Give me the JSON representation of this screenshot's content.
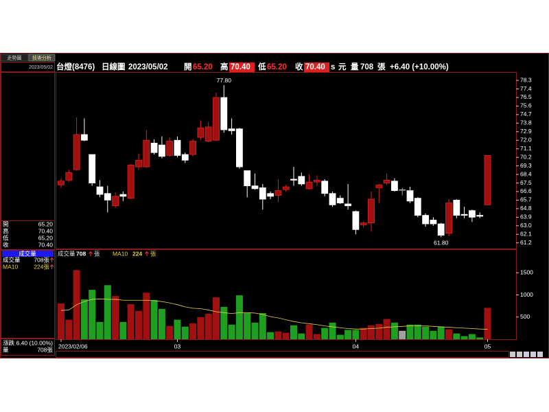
{
  "header": {
    "name": "台燈(8476)",
    "period": "日線圖",
    "date": "2023/05/02",
    "quotes": [
      {
        "label": "開",
        "value": "65.20"
      },
      {
        "label": "高",
        "value": "70.40"
      },
      {
        "label": "低",
        "value": "65.20"
      },
      {
        "label": "收",
        "value": "70.40"
      }
    ],
    "flag": "s",
    "currency": "元",
    "volume": {
      "label": "量",
      "value": "708",
      "unit": "張"
    },
    "change": "+6.40 (+10.00%)"
  },
  "side_panel": {
    "tabs": [
      "走勢圖",
      "技術分析"
    ],
    "date": "2023/05/02",
    "quotes": [
      {
        "label": "開",
        "value": "65.20"
      },
      {
        "label": "高",
        "value": "70.40"
      },
      {
        "label": "低",
        "value": "65.20"
      },
      {
        "label": "收",
        "value": "70.40"
      }
    ],
    "volume_title": "成交量",
    "volume_rows": [
      {
        "label": "成交量",
        "value": "708張"
      },
      {
        "label": "MA10",
        "value": "224張"
      }
    ],
    "footer": [
      {
        "label": "漲跌",
        "value": "6.40 (10.00%)"
      },
      {
        "label": "量",
        "value": "708張"
      }
    ]
  },
  "chart_data": [
    {
      "type": "candlestick",
      "open": [
        67.3,
        67.8,
        68.9,
        72.6,
        70.5,
        67.1,
        66.4,
        65.1,
        66.3,
        65.9,
        69.2,
        69.2,
        71.7,
        71.5,
        70.4,
        72.0,
        70.5,
        70.5,
        72.3,
        71.9,
        72.0,
        76.5,
        73.2,
        73.2,
        68.8,
        67.2,
        67.0,
        66.4,
        66.2,
        66.8,
        67.9,
        68.2,
        66.9,
        67.6,
        67.7,
        66.4,
        65.9,
        65.3,
        64.5,
        63.1,
        63.3,
        67.0,
        67.5,
        67.7,
        66.8,
        66.7,
        65.9,
        64.1,
        63.6,
        63.2,
        62.2,
        65.7,
        64.2,
        64.6,
        64.1,
        65.2
      ],
      "high": [
        68.0,
        68.9,
        74.4,
        74.3,
        70.5,
        67.8,
        67.2,
        66.5,
        66.6,
        69.5,
        70.6,
        73.1,
        72.1,
        72.4,
        72.3,
        72.4,
        70.7,
        72.1,
        74.1,
        73.9,
        77.0,
        77.8,
        74.3,
        73.3,
        68.8,
        68.5,
        67.4,
        66.6,
        67.9,
        67.3,
        69.2,
        68.6,
        68.4,
        68.3,
        67.9,
        66.6,
        66.2,
        67.4,
        64.6,
        63.5,
        66.6,
        67.4,
        68.5,
        68.0,
        67.0,
        67.1,
        66.0,
        64.3,
        63.9,
        63.3,
        65.8,
        65.8,
        65.0,
        64.7,
        64.4,
        70.4
      ],
      "low": [
        67.0,
        67.6,
        68.8,
        71.9,
        67.2,
        66.0,
        64.4,
        64.9,
        65.6,
        65.8,
        68.9,
        69.1,
        70.5,
        70.1,
        70.3,
        70.2,
        69.6,
        70.3,
        72.0,
        71.8,
        71.9,
        72.8,
        72.6,
        69.0,
        66.0,
        66.8,
        64.7,
        65.8,
        65.5,
        66.6,
        67.2,
        67.2,
        66.8,
        67.2,
        66.1,
        65.0,
        65.3,
        64.7,
        62.1,
        62.8,
        62.4,
        65.4,
        67.3,
        66.6,
        66.2,
        65.4,
        63.9,
        62.9,
        63.0,
        61.8,
        61.9,
        63.8,
        63.8,
        63.4,
        63.8,
        65.2
      ],
      "close": [
        67.7,
        68.6,
        72.6,
        72.0,
        67.5,
        66.3,
        65.7,
        66.1,
        66.1,
        69.4,
        69.9,
        72.0,
        70.7,
        70.3,
        71.9,
        70.4,
        69.9,
        71.9,
        73.3,
        73.4,
        76.5,
        73.1,
        73.0,
        69.2,
        67.2,
        66.9,
        65.8,
        66.1,
        66.7,
        67.1,
        67.8,
        67.4,
        67.6,
        67.8,
        66.4,
        65.2,
        65.4,
        65.1,
        62.6,
        63.3,
        65.8,
        67.3,
        67.8,
        66.7,
        66.8,
        65.6,
        64.1,
        63.2,
        63.2,
        62.0,
        65.4,
        64.1,
        64.1,
        63.9,
        64.0,
        70.4
      ],
      "ylim": [
        60.6,
        79.1
      ],
      "yticks": [
        78.3,
        77.4,
        76.5,
        75.6,
        74.7,
        73.8,
        72.9,
        {
          "value": 72,
          "label": "72.0"
        },
        71.1,
        70.2,
        69.3,
        68.4,
        67.5,
        66.6,
        65.7,
        64.8,
        63.9,
        {
          "value": 63,
          "label": "63.0"
        },
        62.1,
        61.2
      ],
      "up_color": "#a01010",
      "down_color": "#ffffff",
      "flat_color": "#a0a0a0",
      "max_label": "77.80",
      "min_label": "61.80"
    },
    {
      "type": "bar",
      "categories": [
        "2023/02/06",
        null,
        null,
        null,
        null,
        null,
        null,
        null,
        null,
        null,
        null,
        null,
        null,
        null,
        null,
        "03",
        null,
        null,
        null,
        null,
        null,
        null,
        null,
        null,
        null,
        null,
        null,
        null,
        null,
        null,
        null,
        null,
        null,
        null,
        null,
        null,
        null,
        null,
        "04",
        null,
        null,
        null,
        null,
        null,
        null,
        null,
        null,
        null,
        null,
        null,
        null,
        null,
        null,
        null,
        null,
        "05"
      ],
      "series": [
        {
          "name": "成交量",
          "last_label": "708",
          "unit": "張",
          "up_color": "#a01010",
          "down_color": "#1f9f1f",
          "flat_color": "#a0a0a0",
          "values": [
            808,
            440,
            1560,
            900,
            1115,
            390,
            1220,
            975,
            390,
            790,
            640,
            1050,
            885,
            685,
            300,
            440,
            285,
            360,
            500,
            575,
            945,
            730,
            330,
            990,
            590,
            375,
            590,
            160,
            175,
            145,
            315,
            130,
            330,
            115,
            255,
            375,
            100,
            210,
            210,
            255,
            315,
            345,
            455,
            375,
            190,
            330,
            330,
            285,
            190,
            285,
            225,
            130,
            70,
            115,
            40,
            708
          ]
        },
        {
          "name": "MA10",
          "type": "line",
          "color": "#e8d048",
          "last_label": "224",
          "unit": "張",
          "values": [
            650,
            660,
            780,
            850,
            900,
            910,
            900,
            900,
            880,
            880,
            880,
            880,
            870,
            850,
            820,
            780,
            730,
            700,
            690,
            660,
            620,
            600,
            580,
            600,
            600,
            590,
            560,
            510,
            480,
            440,
            400,
            370,
            350,
            330,
            300,
            280,
            260,
            240,
            230,
            230,
            240,
            250,
            270,
            280,
            290,
            300,
            300,
            300,
            290,
            280,
            270,
            260,
            250,
            240,
            230,
            224
          ]
        }
      ],
      "ylim": [
        0,
        2000
      ],
      "yticks": [
        1500,
        1000,
        500
      ]
    }
  ]
}
